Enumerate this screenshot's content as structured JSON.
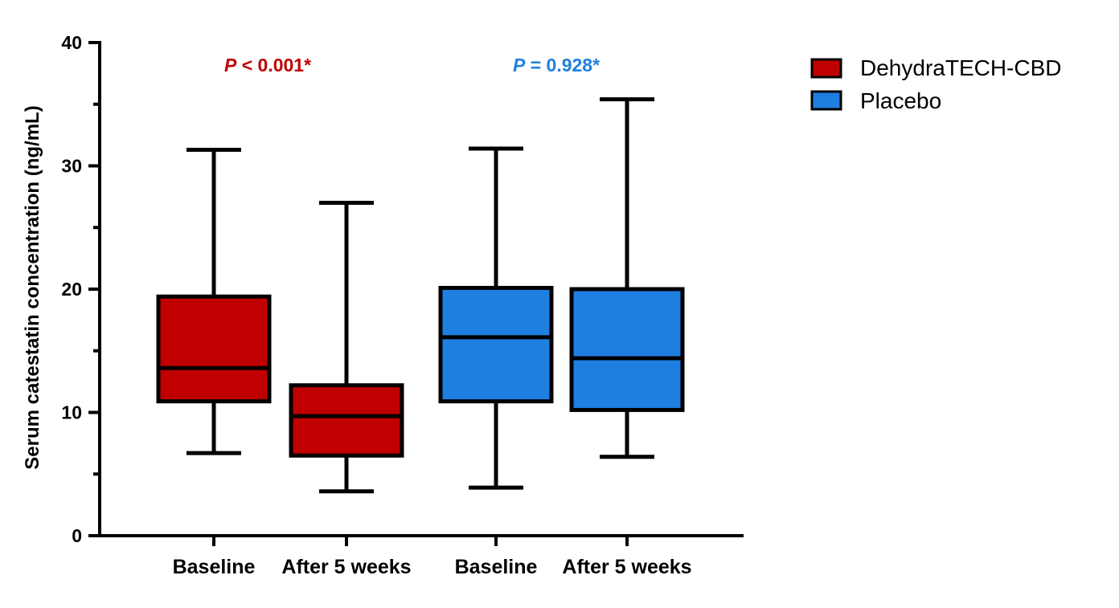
{
  "chart_data": {
    "type": "box",
    "ylabel": "Serum catestatin concentration (ng/mL)",
    "xlabel": "",
    "ylim": [
      0,
      40
    ],
    "yticks": [
      0,
      10,
      20,
      30,
      40
    ],
    "grid": false,
    "legend_position": "top-right",
    "categories": [
      "Baseline",
      "After 5 weeks",
      "Baseline",
      "After 5 weeks"
    ],
    "series": [
      {
        "name": "DehydraTECH-CBD",
        "color": "#c00000",
        "boxes": [
          {
            "category": "Baseline",
            "min": 6.7,
            "q1": 10.9,
            "median": 13.6,
            "q3": 19.4,
            "max": 31.3
          },
          {
            "category": "After 5 weeks",
            "min": 3.6,
            "q1": 6.5,
            "median": 9.7,
            "q3": 12.2,
            "max": 27.0
          }
        ]
      },
      {
        "name": "Placebo",
        "color": "#1f7fe0",
        "boxes": [
          {
            "category": "Baseline",
            "min": 3.9,
            "q1": 10.9,
            "median": 16.1,
            "q3": 20.1,
            "max": 31.4
          },
          {
            "category": "After 5 weeks",
            "min": 6.4,
            "q1": 10.2,
            "median": 14.4,
            "q3": 20.0,
            "max": 35.4
          }
        ]
      }
    ],
    "annotations": [
      {
        "p_symbol": "P",
        "text": " < 0.001*",
        "color": "#c00000",
        "group": "DehydraTECH-CBD"
      },
      {
        "p_symbol": "P",
        "text": " = 0.928*",
        "color": "#1f7fe0",
        "group": "Placebo"
      }
    ]
  }
}
